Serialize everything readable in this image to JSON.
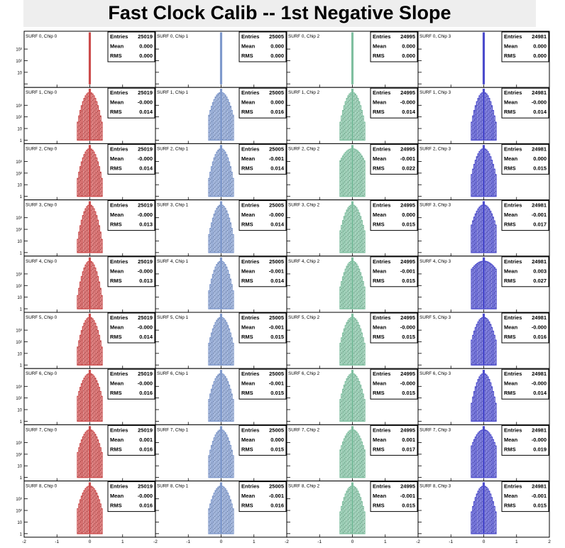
{
  "title": "Fast Clock Calib -- 1st Negative Slope",
  "colors": {
    "chip0": "#cc4c4c",
    "chip1": "#7f99cc",
    "chip2": "#7fbfa0",
    "chip3": "#4c4ccc"
  },
  "stat_labels": {
    "entries": "Entries",
    "mean": "Mean",
    "rms": "RMS"
  },
  "chart_data": {
    "type": "histogram-grid",
    "xlim": [
      -2,
      2
    ],
    "x_ticks": [
      "-2",
      "-1",
      "0",
      "1",
      "2"
    ],
    "y_scale": "log",
    "y_ticks": [
      "1",
      "10",
      "10²",
      "10³"
    ],
    "panels": [
      {
        "label": "SURF 0, Chip 0",
        "entries": "25019",
        "mean": "0.000",
        "rms": "0.000",
        "chip": 0
      },
      {
        "label": "SURF 0, Chip 1",
        "entries": "25005",
        "mean": "0.000",
        "rms": "0.000",
        "chip": 1
      },
      {
        "label": "SURF 0, Chip 2",
        "entries": "24995",
        "mean": "0.000",
        "rms": "0.000",
        "chip": 2
      },
      {
        "label": "SURF 0, Chip 3",
        "entries": "24981",
        "mean": "0.000",
        "rms": "0.000",
        "chip": 3
      },
      {
        "label": "SURF 1, Chip 0",
        "entries": "25019",
        "mean": "-0.000",
        "rms": "0.014",
        "chip": 0
      },
      {
        "label": "SURF 1, Chip 1",
        "entries": "25005",
        "mean": "0.000",
        "rms": "0.016",
        "chip": 1
      },
      {
        "label": "SURF 1, Chip 2",
        "entries": "24995",
        "mean": "-0.000",
        "rms": "0.014",
        "chip": 2
      },
      {
        "label": "SURF 1, Chip 3",
        "entries": "24981",
        "mean": "-0.000",
        "rms": "0.014",
        "chip": 3
      },
      {
        "label": "SURF 2, Chip 0",
        "entries": "25019",
        "mean": "-0.000",
        "rms": "0.014",
        "chip": 0
      },
      {
        "label": "SURF 2, Chip 1",
        "entries": "25005",
        "mean": "-0.001",
        "rms": "0.014",
        "chip": 1
      },
      {
        "label": "SURF 2, Chip 2",
        "entries": "24995",
        "mean": "-0.001",
        "rms": "0.022",
        "chip": 2
      },
      {
        "label": "SURF 2, Chip 3",
        "entries": "24981",
        "mean": "0.000",
        "rms": "0.015",
        "chip": 3
      },
      {
        "label": "SURF 3, Chip 0",
        "entries": "25019",
        "mean": "-0.000",
        "rms": "0.013",
        "chip": 0
      },
      {
        "label": "SURF 3, Chip 1",
        "entries": "25005",
        "mean": "-0.000",
        "rms": "0.014",
        "chip": 1
      },
      {
        "label": "SURF 3, Chip 2",
        "entries": "24995",
        "mean": "0.000",
        "rms": "0.015",
        "chip": 2
      },
      {
        "label": "SURF 3, Chip 3",
        "entries": "24981",
        "mean": "-0.001",
        "rms": "0.017",
        "chip": 3
      },
      {
        "label": "SURF 4, Chip 0",
        "entries": "25019",
        "mean": "-0.000",
        "rms": "0.013",
        "chip": 0
      },
      {
        "label": "SURF 4, Chip 1",
        "entries": "25005",
        "mean": "-0.001",
        "rms": "0.014",
        "chip": 1
      },
      {
        "label": "SURF 4, Chip 2",
        "entries": "24995",
        "mean": "-0.001",
        "rms": "0.015",
        "chip": 2
      },
      {
        "label": "SURF 4, Chip 3",
        "entries": "24981",
        "mean": "0.003",
        "rms": "0.027",
        "chip": 3
      },
      {
        "label": "SURF 5, Chip 0",
        "entries": "25019",
        "mean": "-0.000",
        "rms": "0.014",
        "chip": 0
      },
      {
        "label": "SURF 5, Chip 1",
        "entries": "25005",
        "mean": "-0.001",
        "rms": "0.015",
        "chip": 1
      },
      {
        "label": "SURF 5, Chip 2",
        "entries": "24995",
        "mean": "-0.000",
        "rms": "0.015",
        "chip": 2
      },
      {
        "label": "SURF 5, Chip 3",
        "entries": "24981",
        "mean": "-0.000",
        "rms": "0.016",
        "chip": 3
      },
      {
        "label": "SURF 6, Chip 0",
        "entries": "25019",
        "mean": "-0.000",
        "rms": "0.016",
        "chip": 0
      },
      {
        "label": "SURF 6, Chip 1",
        "entries": "25005",
        "mean": "-0.001",
        "rms": "0.015",
        "chip": 1
      },
      {
        "label": "SURF 6, Chip 2",
        "entries": "24995",
        "mean": "-0.000",
        "rms": "0.015",
        "chip": 2
      },
      {
        "label": "SURF 6, Chip 3",
        "entries": "24981",
        "mean": "-0.000",
        "rms": "0.014",
        "chip": 3
      },
      {
        "label": "SURF 7, Chip 0",
        "entries": "25019",
        "mean": "0.001",
        "rms": "0.016",
        "chip": 0
      },
      {
        "label": "SURF 7, Chip 1",
        "entries": "25005",
        "mean": "0.000",
        "rms": "0.015",
        "chip": 1
      },
      {
        "label": "SURF 7, Chip 2",
        "entries": "24995",
        "mean": "0.001",
        "rms": "0.017",
        "chip": 2
      },
      {
        "label": "SURF 7, Chip 3",
        "entries": "24981",
        "mean": "-0.000",
        "rms": "0.019",
        "chip": 3
      },
      {
        "label": "SURF 8, Chip 0",
        "entries": "25019",
        "mean": "-0.000",
        "rms": "0.016",
        "chip": 0
      },
      {
        "label": "SURF 8, Chip 1",
        "entries": "25005",
        "mean": "-0.001",
        "rms": "0.016",
        "chip": 1
      },
      {
        "label": "SURF 8, Chip 2",
        "entries": "24995",
        "mean": "-0.001",
        "rms": "0.015",
        "chip": 2
      },
      {
        "label": "SURF 8, Chip 3",
        "entries": "24981",
        "mean": "-0.001",
        "rms": "0.015",
        "chip": 3
      }
    ]
  }
}
